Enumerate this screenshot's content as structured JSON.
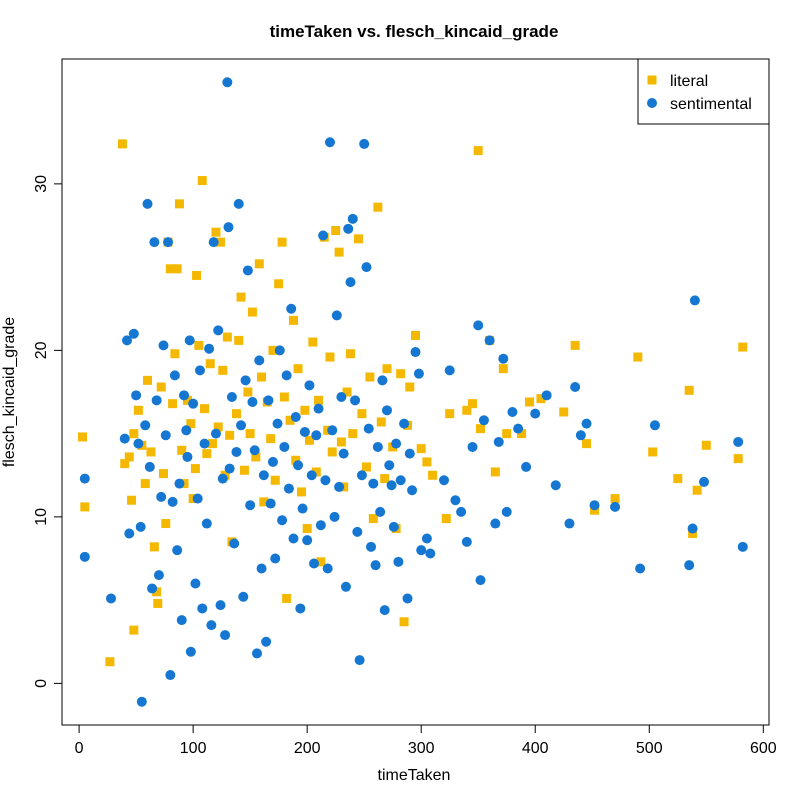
{
  "chart_data": {
    "type": "scatter",
    "title": "timeTaken vs. flesch_kincaid_grade",
    "xlabel": "timeTaken",
    "ylabel": "flesch_kincaid_grade",
    "xlim": [
      -15,
      605
    ],
    "ylim": [
      -2.5,
      37.5
    ],
    "x_ticks": [
      0,
      100,
      200,
      300,
      400,
      500,
      600
    ],
    "y_ticks": [
      0,
      10,
      20,
      30
    ],
    "grid": false,
    "legend_position": "top-right",
    "series": [
      {
        "name": "literal",
        "marker": "square",
        "color": "#F5B800",
        "points": [
          [
            3,
            14.8
          ],
          [
            5,
            10.6
          ],
          [
            27,
            1.3
          ],
          [
            38,
            32.4
          ],
          [
            40,
            13.2
          ],
          [
            44,
            13.6
          ],
          [
            46,
            11.0
          ],
          [
            48,
            3.2
          ],
          [
            48,
            15.0
          ],
          [
            52,
            16.4
          ],
          [
            55,
            14.3
          ],
          [
            58,
            12.0
          ],
          [
            60,
            18.2
          ],
          [
            63,
            13.9
          ],
          [
            66,
            8.2
          ],
          [
            68,
            5.5
          ],
          [
            69,
            4.8
          ],
          [
            72,
            17.8
          ],
          [
            74,
            12.6
          ],
          [
            76,
            9.6
          ],
          [
            78,
            26.5
          ],
          [
            80,
            24.9
          ],
          [
            82,
            16.8
          ],
          [
            84,
            19.8
          ],
          [
            86,
            24.9
          ],
          [
            88,
            28.8
          ],
          [
            90,
            14.0
          ],
          [
            92,
            12.0
          ],
          [
            95,
            17.0
          ],
          [
            98,
            15.6
          ],
          [
            100,
            11.1
          ],
          [
            102,
            12.9
          ],
          [
            103,
            24.5
          ],
          [
            105,
            20.3
          ],
          [
            108,
            30.2
          ],
          [
            110,
            16.5
          ],
          [
            112,
            13.8
          ],
          [
            115,
            19.2
          ],
          [
            117,
            14.4
          ],
          [
            120,
            27.1
          ],
          [
            122,
            15.4
          ],
          [
            124,
            26.5
          ],
          [
            126,
            18.8
          ],
          [
            128,
            12.5
          ],
          [
            130,
            20.8
          ],
          [
            132,
            14.9
          ],
          [
            134,
            8.5
          ],
          [
            138,
            16.2
          ],
          [
            140,
            20.6
          ],
          [
            142,
            23.2
          ],
          [
            145,
            12.8
          ],
          [
            148,
            17.5
          ],
          [
            150,
            15.0
          ],
          [
            152,
            22.3
          ],
          [
            155,
            13.6
          ],
          [
            158,
            25.2
          ],
          [
            160,
            18.4
          ],
          [
            162,
            10.9
          ],
          [
            165,
            16.9
          ],
          [
            168,
            14.7
          ],
          [
            170,
            20.0
          ],
          [
            172,
            12.2
          ],
          [
            175,
            24.0
          ],
          [
            178,
            26.5
          ],
          [
            180,
            17.2
          ],
          [
            182,
            5.1
          ],
          [
            185,
            15.8
          ],
          [
            188,
            21.8
          ],
          [
            190,
            13.4
          ],
          [
            192,
            18.9
          ],
          [
            195,
            11.5
          ],
          [
            198,
            16.4
          ],
          [
            200,
            9.3
          ],
          [
            202,
            14.6
          ],
          [
            205,
            20.5
          ],
          [
            208,
            12.7
          ],
          [
            210,
            17.0
          ],
          [
            212,
            7.3
          ],
          [
            215,
            26.8
          ],
          [
            218,
            15.2
          ],
          [
            220,
            19.6
          ],
          [
            222,
            13.9
          ],
          [
            225,
            27.2
          ],
          [
            228,
            25.9
          ],
          [
            230,
            14.5
          ],
          [
            232,
            11.8
          ],
          [
            235,
            17.5
          ],
          [
            238,
            19.8
          ],
          [
            240,
            15.0
          ],
          [
            245,
            26.7
          ],
          [
            248,
            16.2
          ],
          [
            252,
            13.0
          ],
          [
            255,
            18.4
          ],
          [
            258,
            9.9
          ],
          [
            262,
            28.6
          ],
          [
            265,
            15.7
          ],
          [
            268,
            12.3
          ],
          [
            270,
            18.9
          ],
          [
            275,
            14.2
          ],
          [
            278,
            9.3
          ],
          [
            282,
            18.6
          ],
          [
            285,
            3.7
          ],
          [
            288,
            15.5
          ],
          [
            290,
            17.8
          ],
          [
            295,
            20.9
          ],
          [
            300,
            14.1
          ],
          [
            305,
            13.3
          ],
          [
            310,
            12.5
          ],
          [
            322,
            9.9
          ],
          [
            325,
            16.2
          ],
          [
            340,
            16.4
          ],
          [
            345,
            16.8
          ],
          [
            350,
            32.0
          ],
          [
            352,
            15.3
          ],
          [
            360,
            20.6
          ],
          [
            365,
            12.7
          ],
          [
            372,
            18.9
          ],
          [
            375,
            15.0
          ],
          [
            388,
            15.0
          ],
          [
            395,
            16.9
          ],
          [
            405,
            17.1
          ],
          [
            425,
            16.3
          ],
          [
            435,
            20.3
          ],
          [
            445,
            14.4
          ],
          [
            452,
            10.4
          ],
          [
            470,
            11.1
          ],
          [
            490,
            19.6
          ],
          [
            503,
            13.9
          ],
          [
            525,
            12.3
          ],
          [
            535,
            17.6
          ],
          [
            538,
            9.0
          ],
          [
            542,
            11.6
          ],
          [
            550,
            14.3
          ],
          [
            578,
            13.5
          ],
          [
            582,
            20.2
          ]
        ]
      },
      {
        "name": "sentimental",
        "marker": "circle",
        "color": "#1577D1",
        "points": [
          [
            5,
            12.3
          ],
          [
            5,
            7.6
          ],
          [
            28,
            5.1
          ],
          [
            40,
            14.7
          ],
          [
            42,
            20.6
          ],
          [
            44,
            9.0
          ],
          [
            48,
            21.0
          ],
          [
            50,
            17.3
          ],
          [
            52,
            14.4
          ],
          [
            54,
            9.4
          ],
          [
            55,
            -1.1
          ],
          [
            58,
            15.5
          ],
          [
            60,
            28.8
          ],
          [
            62,
            13.0
          ],
          [
            64,
            5.7
          ],
          [
            66,
            26.5
          ],
          [
            68,
            17.0
          ],
          [
            70,
            6.5
          ],
          [
            72,
            11.2
          ],
          [
            74,
            20.3
          ],
          [
            76,
            14.9
          ],
          [
            78,
            26.5
          ],
          [
            80,
            0.5
          ],
          [
            82,
            10.9
          ],
          [
            84,
            18.5
          ],
          [
            86,
            8.0
          ],
          [
            88,
            12.0
          ],
          [
            90,
            3.8
          ],
          [
            92,
            17.3
          ],
          [
            94,
            15.2
          ],
          [
            95,
            13.6
          ],
          [
            97,
            20.6
          ],
          [
            98,
            1.9
          ],
          [
            100,
            16.8
          ],
          [
            102,
            6.0
          ],
          [
            104,
            11.1
          ],
          [
            106,
            18.8
          ],
          [
            108,
            4.5
          ],
          [
            110,
            14.4
          ],
          [
            112,
            9.6
          ],
          [
            114,
            20.1
          ],
          [
            116,
            3.5
          ],
          [
            118,
            26.5
          ],
          [
            120,
            15.0
          ],
          [
            122,
            21.2
          ],
          [
            124,
            4.7
          ],
          [
            126,
            12.3
          ],
          [
            128,
            2.9
          ],
          [
            130,
            36.1
          ],
          [
            131,
            27.4
          ],
          [
            132,
            12.9
          ],
          [
            134,
            17.2
          ],
          [
            136,
            8.4
          ],
          [
            138,
            13.9
          ],
          [
            140,
            28.8
          ],
          [
            142,
            15.5
          ],
          [
            144,
            5.2
          ],
          [
            146,
            18.2
          ],
          [
            148,
            24.8
          ],
          [
            150,
            10.7
          ],
          [
            152,
            16.9
          ],
          [
            154,
            14.0
          ],
          [
            156,
            1.8
          ],
          [
            158,
            19.4
          ],
          [
            160,
            6.9
          ],
          [
            162,
            12.5
          ],
          [
            164,
            2.5
          ],
          [
            166,
            17.0
          ],
          [
            168,
            10.8
          ],
          [
            170,
            13.3
          ],
          [
            172,
            7.5
          ],
          [
            174,
            15.6
          ],
          [
            176,
            20.0
          ],
          [
            178,
            9.8
          ],
          [
            180,
            14.2
          ],
          [
            182,
            18.5
          ],
          [
            184,
            11.7
          ],
          [
            186,
            22.5
          ],
          [
            188,
            8.7
          ],
          [
            190,
            16.0
          ],
          [
            192,
            13.1
          ],
          [
            194,
            4.5
          ],
          [
            196,
            10.5
          ],
          [
            198,
            15.1
          ],
          [
            200,
            8.6
          ],
          [
            202,
            17.9
          ],
          [
            204,
            12.5
          ],
          [
            206,
            7.2
          ],
          [
            208,
            14.9
          ],
          [
            210,
            16.5
          ],
          [
            212,
            9.5
          ],
          [
            214,
            26.9
          ],
          [
            216,
            12.2
          ],
          [
            218,
            6.9
          ],
          [
            220,
            32.5
          ],
          [
            222,
            15.2
          ],
          [
            224,
            10.0
          ],
          [
            226,
            22.1
          ],
          [
            228,
            11.8
          ],
          [
            230,
            17.2
          ],
          [
            232,
            13.8
          ],
          [
            234,
            5.8
          ],
          [
            236,
            27.3
          ],
          [
            238,
            24.1
          ],
          [
            240,
            27.9
          ],
          [
            242,
            17.0
          ],
          [
            244,
            9.1
          ],
          [
            246,
            1.4
          ],
          [
            248,
            12.5
          ],
          [
            250,
            32.4
          ],
          [
            252,
            25.0
          ],
          [
            254,
            15.3
          ],
          [
            256,
            8.2
          ],
          [
            258,
            12.0
          ],
          [
            260,
            7.1
          ],
          [
            262,
            14.2
          ],
          [
            264,
            10.3
          ],
          [
            266,
            18.2
          ],
          [
            268,
            4.4
          ],
          [
            270,
            16.4
          ],
          [
            272,
            13.1
          ],
          [
            274,
            11.9
          ],
          [
            276,
            9.4
          ],
          [
            278,
            14.4
          ],
          [
            280,
            7.3
          ],
          [
            282,
            12.2
          ],
          [
            285,
            15.6
          ],
          [
            288,
            5.1
          ],
          [
            290,
            13.8
          ],
          [
            292,
            11.6
          ],
          [
            295,
            19.9
          ],
          [
            298,
            18.6
          ],
          [
            300,
            8.0
          ],
          [
            305,
            8.7
          ],
          [
            308,
            7.8
          ],
          [
            320,
            12.2
          ],
          [
            325,
            18.8
          ],
          [
            330,
            11.0
          ],
          [
            335,
            10.3
          ],
          [
            340,
            8.5
          ],
          [
            345,
            14.2
          ],
          [
            350,
            21.5
          ],
          [
            352,
            6.2
          ],
          [
            355,
            15.8
          ],
          [
            360,
            20.6
          ],
          [
            365,
            9.6
          ],
          [
            368,
            14.5
          ],
          [
            372,
            19.5
          ],
          [
            375,
            10.3
          ],
          [
            380,
            16.3
          ],
          [
            385,
            15.3
          ],
          [
            392,
            13.0
          ],
          [
            400,
            16.2
          ],
          [
            410,
            17.3
          ],
          [
            418,
            11.9
          ],
          [
            430,
            9.6
          ],
          [
            435,
            17.8
          ],
          [
            440,
            14.9
          ],
          [
            445,
            15.6
          ],
          [
            452,
            10.7
          ],
          [
            470,
            10.6
          ],
          [
            492,
            6.9
          ],
          [
            505,
            15.5
          ],
          [
            535,
            7.1
          ],
          [
            538,
            9.3
          ],
          [
            540,
            23.0
          ],
          [
            548,
            12.1
          ],
          [
            578,
            14.5
          ],
          [
            582,
            8.2
          ]
        ]
      }
    ]
  }
}
